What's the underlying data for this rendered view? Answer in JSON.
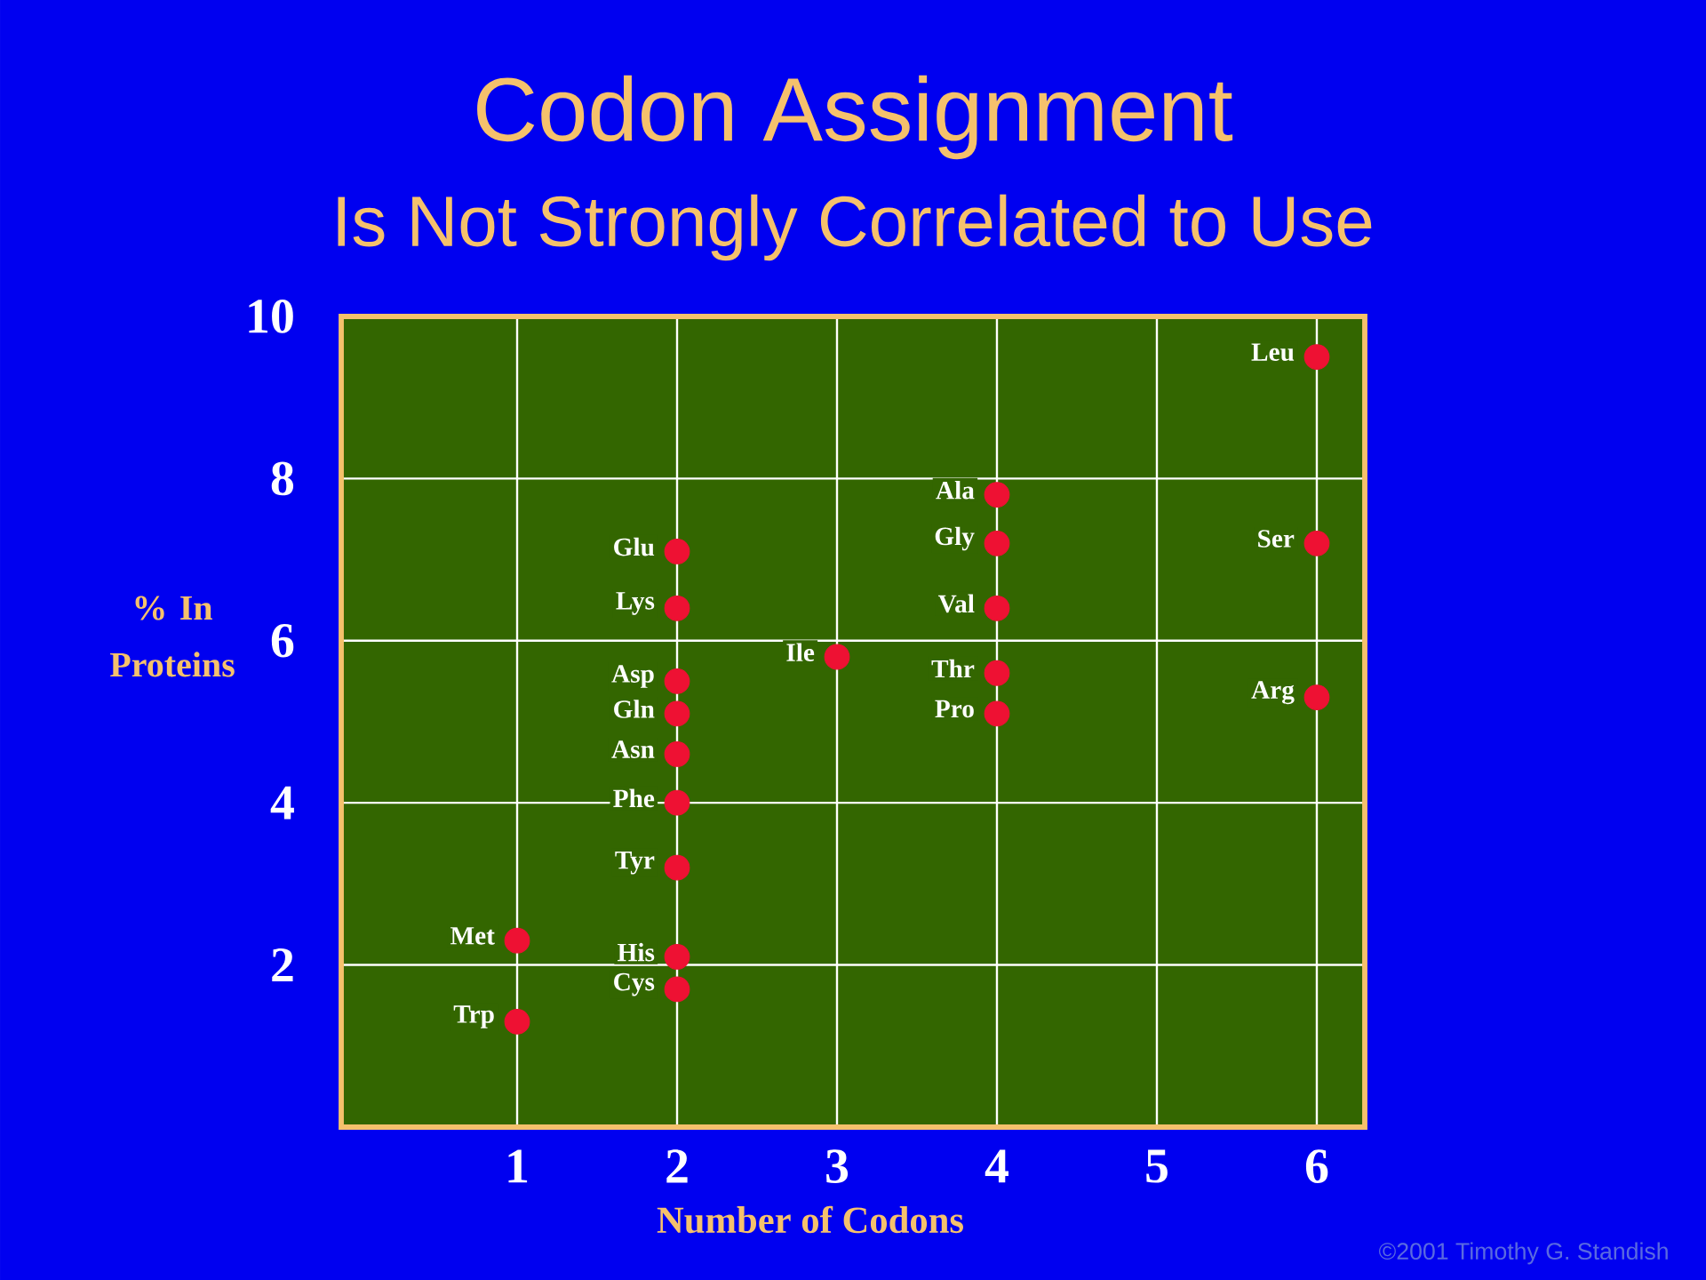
{
  "chart_data": {
    "type": "scatter",
    "title": "Codon Assignment",
    "subtitle": "Is Not Strongly Correlated to Use",
    "xlabel": "Number of Codons",
    "ylabel": "% In Proteins",
    "xlim": [
      -0.1,
      6.3
    ],
    "ylim": [
      0,
      10
    ],
    "xticks": [
      1,
      2,
      3,
      4,
      5,
      6
    ],
    "yticks": [
      2,
      4,
      6,
      8,
      10
    ],
    "grid": true,
    "series": [
      {
        "color": "#ee1133",
        "x": [
          6,
          4,
          4,
          6,
          2,
          2,
          4,
          3,
          4,
          2,
          2,
          4,
          2,
          2,
          6,
          2,
          1,
          2,
          2,
          1
        ],
        "values": [
          9.5,
          7.8,
          7.2,
          7.2,
          7.1,
          6.4,
          6.4,
          5.8,
          5.6,
          5.5,
          5.1,
          5.1,
          4.6,
          4.0,
          5.3,
          3.2,
          2.3,
          2.1,
          1.7,
          1.3
        ]
      }
    ],
    "annotations": [
      {
        "text": "Leu",
        "x": 6,
        "y": 9.5
      },
      {
        "text": "Ala",
        "x": 4,
        "y": 7.8
      },
      {
        "text": "Gly",
        "x": 4,
        "y": 7.2
      },
      {
        "text": "Ser",
        "x": 6,
        "y": 7.2
      },
      {
        "text": "Glu",
        "x": 2,
        "y": 7.1
      },
      {
        "text": "Lys",
        "x": 2,
        "y": 6.4
      },
      {
        "text": "Val",
        "x": 4,
        "y": 6.4
      },
      {
        "text": "Ile",
        "x": 3,
        "y": 5.8
      },
      {
        "text": "Thr",
        "x": 4,
        "y": 5.6
      },
      {
        "text": "Asp",
        "x": 2,
        "y": 5.5
      },
      {
        "text": "Gln",
        "x": 2,
        "y": 5.1
      },
      {
        "text": "Pro",
        "x": 4,
        "y": 5.1
      },
      {
        "text": "Asn",
        "x": 2,
        "y": 4.6
      },
      {
        "text": "Phe",
        "x": 2,
        "y": 4.0
      },
      {
        "text": "Arg",
        "x": 6,
        "y": 5.3
      },
      {
        "text": "Tyr",
        "x": 2,
        "y": 3.2
      },
      {
        "text": "Met",
        "x": 1,
        "y": 2.3
      },
      {
        "text": "His",
        "x": 2,
        "y": 2.1
      },
      {
        "text": "Cys",
        "x": 2,
        "y": 1.7
      },
      {
        "text": "Trp",
        "x": 1,
        "y": 1.3
      },
      "©2001 Timothy G. Standish"
    ]
  }
}
